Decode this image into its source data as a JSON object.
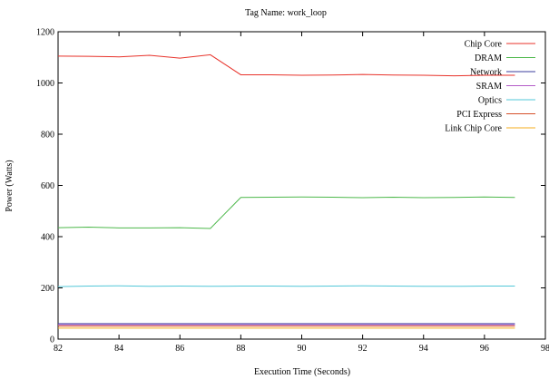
{
  "chart_data": {
    "type": "line",
    "title": "Tag Name: work_loop",
    "xlabel": "Execution Time (Seconds)",
    "ylabel": "Power (Watts)",
    "xlim": [
      82,
      98
    ],
    "ylim": [
      0,
      1200
    ],
    "xticks": [
      82,
      84,
      86,
      88,
      90,
      92,
      94,
      96,
      98
    ],
    "yticks": [
      0,
      200,
      400,
      600,
      800,
      1000,
      1200
    ],
    "x": [
      82,
      83,
      84,
      85,
      86,
      87,
      88,
      89,
      90,
      91,
      92,
      93,
      94,
      95,
      96,
      97
    ],
    "grid": false,
    "legend_position": "top-right",
    "series": [
      {
        "name": "Chip Core",
        "color": "#e8322a",
        "values": [
          1105,
          1104,
          1102,
          1108,
          1097,
          1110,
          1032,
          1032,
          1030,
          1031,
          1033,
          1031,
          1030,
          1028,
          1030,
          1030
        ]
      },
      {
        "name": "DRAM",
        "color": "#4cb84a",
        "values": [
          435,
          437,
          434,
          434,
          435,
          432,
          553,
          554,
          555,
          554,
          552,
          554,
          552,
          553,
          555,
          553
        ]
      },
      {
        "name": "Network",
        "color": "#3b3c9c",
        "values": [
          60,
          60,
          60,
          60,
          60,
          60,
          60,
          60,
          60,
          60,
          60,
          60,
          60,
          60,
          60,
          60
        ]
      },
      {
        "name": "SRAM",
        "color": "#b45cc8",
        "values": [
          56,
          56,
          56,
          56,
          56,
          56,
          56,
          56,
          56,
          56,
          56,
          56,
          56,
          56,
          56,
          56
        ]
      },
      {
        "name": "Optics",
        "color": "#52c7d8",
        "values": [
          205,
          207,
          208,
          206,
          207,
          206,
          207,
          207,
          206,
          207,
          208,
          207,
          206,
          206,
          207,
          207
        ]
      },
      {
        "name": "PCI Express",
        "color": "#d6502a",
        "values": [
          51,
          51,
          51,
          51,
          51,
          51,
          51,
          51,
          51,
          51,
          51,
          51,
          51,
          51,
          51,
          51
        ]
      },
      {
        "name": "Link Chip Core",
        "color": "#f4ad1c",
        "values": [
          43,
          43,
          43,
          43,
          43,
          43,
          43,
          43,
          43,
          43,
          43,
          43,
          43,
          43,
          43,
          43
        ]
      }
    ]
  }
}
